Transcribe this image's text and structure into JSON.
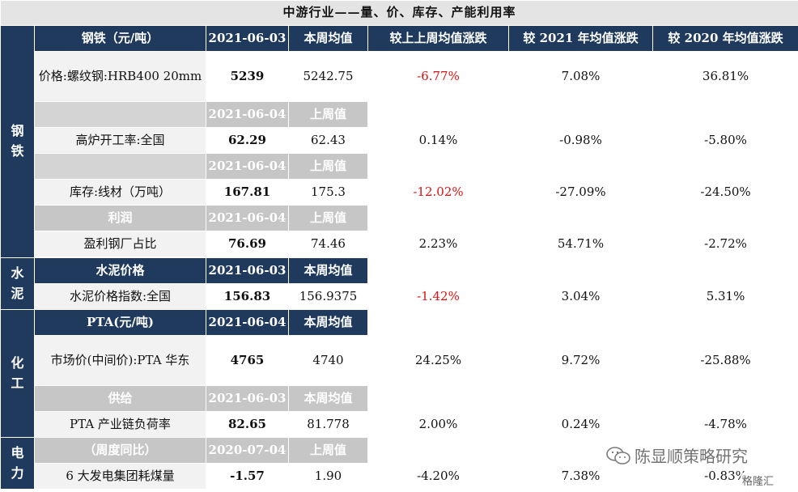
{
  "title": "中游行业——量、价、库存、产能利用率",
  "sections": {
    "steel": "钢\n铁",
    "cement": "水\n泥",
    "chem": "化\n工",
    "power": "电\n力"
  },
  "header": {
    "steel_label": "钢铁（元/吨）",
    "date": "2021-06-03",
    "col_week_avg": "本周均值",
    "col_wow": "较上上周均值涨跌",
    "col_vs2021": "较 2021 年均值涨跌",
    "col_vs2020": "较 2020 年均值涨跌"
  },
  "rows": {
    "rebar": {
      "label": "价格:螺纹钢:HRB400 20mm",
      "value": "5239",
      "prev": "5242.75",
      "wow": "-6.77%",
      "y2021": "7.08%",
      "y2020": "36.81%"
    },
    "blast_header": {
      "date": "2021-06-04",
      "col": "上周值"
    },
    "blast": {
      "label": "高炉开工率:全国",
      "value": "62.29",
      "prev": "62.43",
      "wow": "0.14%",
      "y2021": "-0.98%",
      "y2020": "-5.80%"
    },
    "wire_header": {
      "date": "2021-06-04",
      "col": "上周值"
    },
    "wire": {
      "label": "库存:线材（万吨）",
      "value": "167.81",
      "prev": "175.3",
      "wow": "-12.02%",
      "y2021": "-27.09%",
      "y2020": "-24.50%"
    },
    "profit_header": {
      "label": "利润",
      "date": "2021-06-04",
      "col": "上周值"
    },
    "profit": {
      "label": "盈利钢厂占比",
      "value": "76.69",
      "prev": "74.46",
      "wow": "2.23%",
      "y2021": "54.71%",
      "y2020": "-2.72%"
    },
    "cement_header": {
      "label": "水泥价格",
      "date": "2021-06-03",
      "col": "本周均值"
    },
    "cement": {
      "label": "水泥价格指数:全国",
      "value": "156.83",
      "prev": "156.9375",
      "wow": "-1.42%",
      "y2021": "3.04%",
      "y2020": "5.31%"
    },
    "pta_header": {
      "label": "PTA(元/吨)",
      "date": "2021-06-04",
      "col": "本周均值"
    },
    "pta": {
      "label": "市场价(中间价):PTA 华东",
      "value": "4765",
      "prev": "4740",
      "wow": "24.25%",
      "y2021": "9.72%",
      "y2020": "-25.88%"
    },
    "supply_header": {
      "label": "供给",
      "date": "2021-06-03",
      "col": "本周均值"
    },
    "supply": {
      "label": "PTA 产业链负荷率",
      "value": "82.65",
      "prev": "81.778",
      "wow": "2.00%",
      "y2021": "0.24%",
      "y2020": "-4.78%"
    },
    "power_header": {
      "label": "（周度同比）",
      "date": "2020-07-04",
      "col": "上周值"
    },
    "power": {
      "label": "6 大发电集团耗煤量",
      "value": "-1.57",
      "prev": "1.90",
      "wow": "-4.20%",
      "y2021": "7.38%",
      "y2020": "-0.83%"
    }
  },
  "watermark": {
    "text": "陈显顺策略研究",
    "logo": "格隆汇",
    "icon": "wechat-icon"
  }
}
